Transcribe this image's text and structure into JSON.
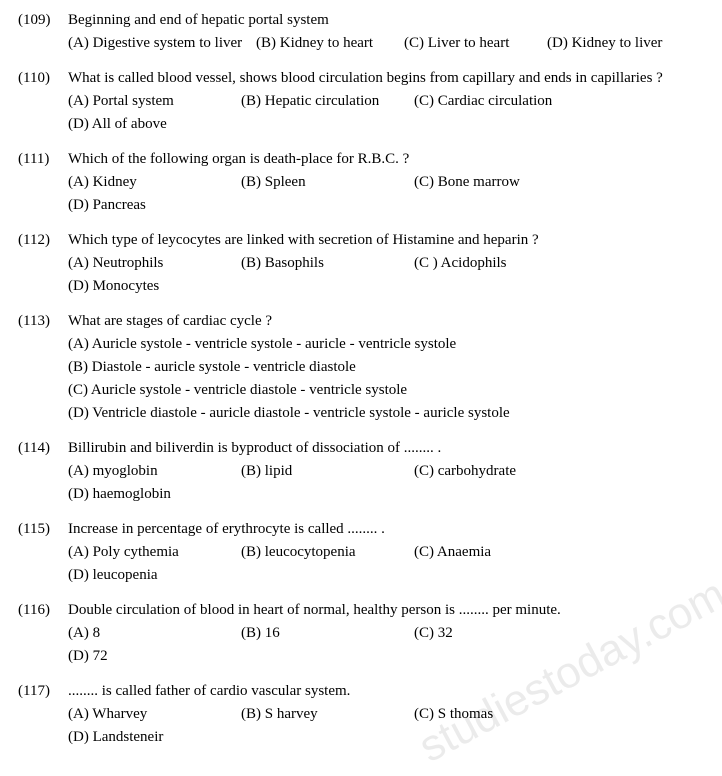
{
  "watermark": "studiestoday.com",
  "questions": [
    {
      "num": "(109)",
      "text": "Beginning and end of hepatic portal system",
      "layout": "inline-tight",
      "options": [
        "(A)  Digestive system to liver",
        "(B) Kidney to heart",
        "(C) Liver to heart",
        "(D)  Kidney to liver"
      ]
    },
    {
      "num": "(110)",
      "text": "What is called blood vessel, shows blood circulation begins from capillary and ends in capillaries ?",
      "layout": "4col",
      "options": [
        "(A)  Portal system",
        "(B)  Hepatic circulation",
        "(C)  Cardiac circulation",
        "(D)  All of above"
      ]
    },
    {
      "num": "(111)",
      "text": "Which of the following organ is death-place for R.B.C. ?",
      "layout": "4col",
      "options": [
        "(A)  Kidney",
        "(B)  Spleen",
        "(C)  Bone marrow",
        "(D)  Pancreas"
      ]
    },
    {
      "num": "(112)",
      "text": "Which type of leycocytes are linked with secretion of Histamine and heparin ?",
      "layout": "4col",
      "options": [
        "(A)  Neutrophils",
        "(B) Basophils",
        "(C ) Acidophils",
        "(D) Monocytes"
      ]
    },
    {
      "num": "(113)",
      "text": "What are stages of cardiac cycle ?",
      "layout": "vertical",
      "options": [
        "(A)  Auricle systole - ventricle systole - auricle - ventricle systole",
        "(B)  Diastole - auricle systole - ventricle diastole",
        "(C)  Auricle systole - ventricle diastole - ventricle systole",
        "(D) Ventricle diastole - auricle diastole - ventricle systole - auricle systole"
      ]
    },
    {
      "num": "(114)",
      "text": "Billirubin and biliverdin is byproduct of dissociation of ........ .",
      "layout": "4col",
      "options": [
        "(A)  myoglobin",
        "(B) lipid",
        "(C) carbohydrate",
        "(D)  haemoglobin"
      ]
    },
    {
      "num": "(115)",
      "text": "Increase in percentage of erythrocyte is called ........ .",
      "layout": "4col",
      "options": [
        "(A)  Poly cythemia",
        "(B)  leucocytopenia",
        "(C) Anaemia",
        "(D)  leucopenia"
      ]
    },
    {
      "num": "(116)",
      "text": "Double circulation of blood in heart of normal, healthy person is ........ per minute.",
      "layout": "4col",
      "options": [
        "(A)  8",
        "(B)  16",
        "(C)  32",
        "(D)  72"
      ]
    },
    {
      "num": "(117)",
      "text": "........ is called father of cardio vascular system.",
      "layout": "4col",
      "options": [
        "(A)  Wharvey",
        "(B)  S harvey",
        "(C) S thomas",
        "(D)  Landsteneir"
      ]
    }
  ]
}
